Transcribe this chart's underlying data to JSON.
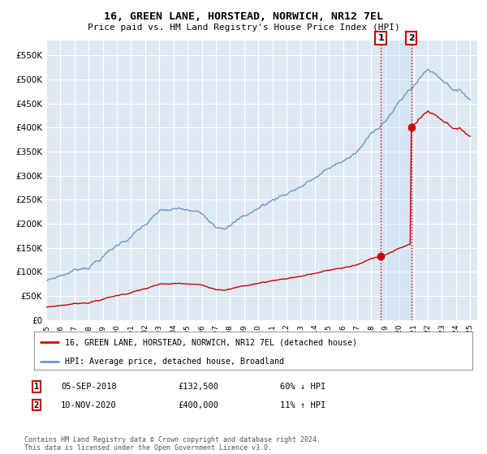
{
  "title": "16, GREEN LANE, HORSTEAD, NORWICH, NR12 7EL",
  "subtitle": "Price paid vs. HM Land Registry's House Price Index (HPI)",
  "legend_line1": "16, GREEN LANE, HORSTEAD, NORWICH, NR12 7EL (detached house)",
  "legend_line2": "HPI: Average price, detached house, Broadland",
  "annotation1_date": "05-SEP-2018",
  "annotation1_price": "£132,500",
  "annotation1_hpi": "60% ↓ HPI",
  "annotation2_date": "10-NOV-2020",
  "annotation2_price": "£400,000",
  "annotation2_hpi": "11% ↑ HPI",
  "footer": "Contains HM Land Registry data © Crown copyright and database right 2024.\nThis data is licensed under the Open Government Licence v3.0.",
  "sale1_year": 2018.67,
  "sale1_value": 132500,
  "sale2_year": 2020.83,
  "sale2_value": 400000,
  "hpi_color": "#6699cc",
  "sale_color": "#cc0000",
  "background_color": "#ffffff",
  "plot_bg_color": "#dde8f3",
  "shade_color": "#daeaf8",
  "grid_color": "#ffffff",
  "ylim_max": 580000,
  "xlim_start": 1995.0,
  "xlim_end": 2025.5
}
